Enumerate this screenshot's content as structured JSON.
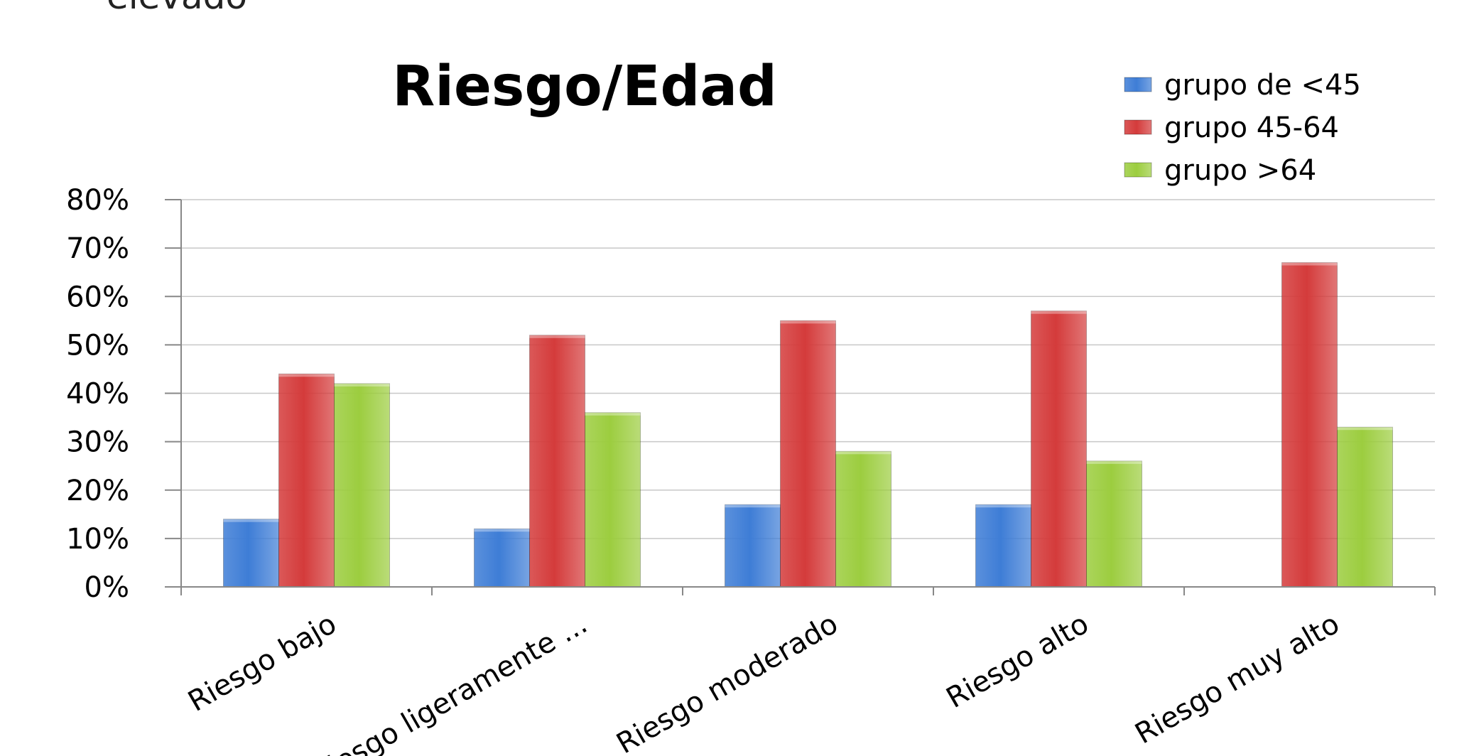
{
  "fragment_text": "elevado",
  "chart_data": {
    "type": "bar",
    "title": "Riesgo/Edad",
    "xlabel": "",
    "ylabel": "",
    "categories": [
      "Riesgo  bajo",
      "Riesgo ligeramente ...",
      "Riesgo moderado",
      "Riesgo alto",
      "Riesgo muy alto"
    ],
    "series": [
      {
        "name": "grupo de <45",
        "color": "#3e7dd6",
        "values": [
          14,
          12,
          17,
          17,
          0
        ]
      },
      {
        "name": "grupo 45-64",
        "color": "#d43b3b",
        "values": [
          44,
          52,
          55,
          57,
          67
        ]
      },
      {
        "name": "grupo >64",
        "color": "#9ccd3f",
        "values": [
          42,
          36,
          28,
          26,
          33
        ]
      }
    ],
    "ylim": [
      0,
      80
    ],
    "yticks": [
      "0%",
      "10%",
      "20%",
      "30%",
      "40%",
      "50%",
      "60%",
      "70%",
      "80%"
    ],
    "grid": true,
    "legend_position": "top-right"
  }
}
